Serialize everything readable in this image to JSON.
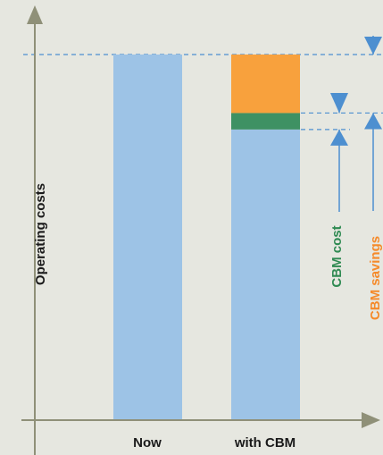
{
  "chart_data": {
    "type": "bar",
    "title": "",
    "xlabel": "",
    "ylabel": "Operating costs",
    "categories": [
      "Now",
      "with CBM"
    ],
    "ylim": [
      0,
      100
    ],
    "grid": false,
    "legend": "none",
    "series": [
      {
        "key": "base",
        "color": "#9dc3e6",
        "values": [
          100,
          79.5
        ]
      },
      {
        "key": "cbm_cost",
        "color": "#3e9163",
        "values": [
          0,
          4.5
        ]
      },
      {
        "key": "cbm_savings",
        "color": "#f8a13d",
        "values": [
          0,
          16
        ]
      }
    ],
    "annotations": {
      "cbm_cost": {
        "text": "CBM cost",
        "color": "#2f8a52"
      },
      "cbm_savings": {
        "text": "CBM savings",
        "color": "#f58a2a"
      }
    },
    "colors": {
      "background": "#e6e7e0",
      "axis": "#8f9078",
      "guide": "#4d8fd0",
      "arrow": "#4d8fd0"
    }
  }
}
